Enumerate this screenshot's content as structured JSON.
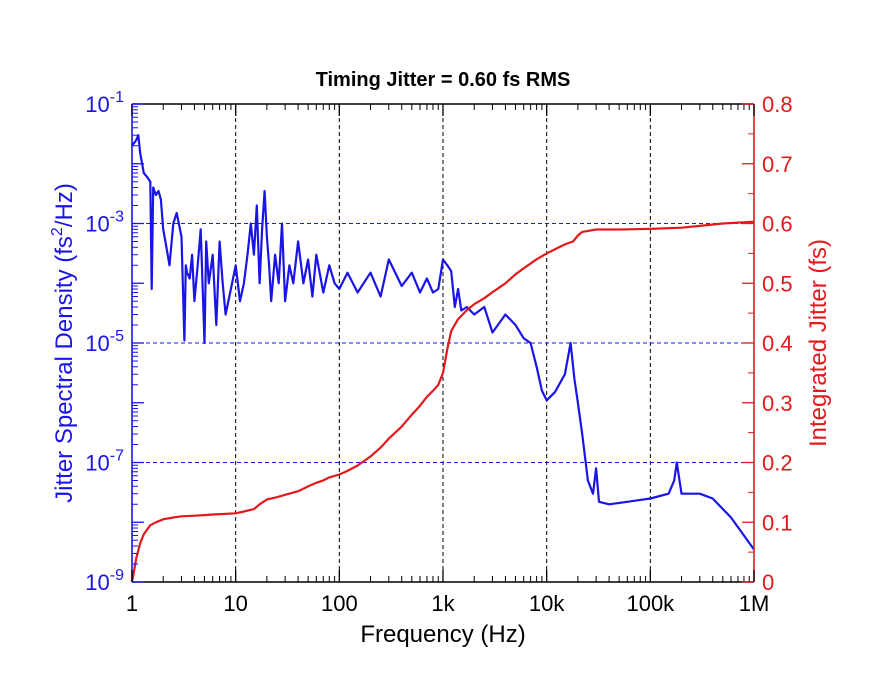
{
  "chart_data": {
    "type": "line",
    "title": "Timing Jitter =  0.60 fs RMS",
    "xlabel": "Frequency (Hz)",
    "ylabel_left": "Jitter Spectral Density (fs",
    "ylabel_left_sup": "2",
    "ylabel_left_suffix": "/Hz)",
    "ylabel_right": "Integrated Jitter (fs)",
    "x_scale": "log",
    "xlim": [
      1,
      1000000
    ],
    "x_ticks": [
      {
        "value": 1,
        "label": "1"
      },
      {
        "value": 10,
        "label": "10"
      },
      {
        "value": 100,
        "label": "100"
      },
      {
        "value": 1000,
        "label": "1k"
      },
      {
        "value": 10000,
        "label": "10k"
      },
      {
        "value": 100000,
        "label": "100k"
      },
      {
        "value": 1000000,
        "label": "1M"
      }
    ],
    "y_left_scale": "log",
    "y_left_lim": [
      1e-09,
      0.1
    ],
    "y_left_ticks": [
      {
        "value": 0.1,
        "base": "10",
        "exp": "-1"
      },
      {
        "value": 0.001,
        "base": "10",
        "exp": "-3"
      },
      {
        "value": 1e-05,
        "base": "10",
        "exp": "-5"
      },
      {
        "value": 1e-07,
        "base": "10",
        "exp": "-7"
      },
      {
        "value": 1e-09,
        "base": "10",
        "exp": "-9"
      }
    ],
    "y_right_scale": "linear",
    "y_right_lim": [
      0,
      0.8
    ],
    "y_right_ticks": [
      "0",
      "0.1",
      "0.2",
      "0.3",
      "0.4",
      "0.5",
      "0.6",
      "0.7",
      "0.8"
    ],
    "grid": {
      "x": "dashed black at decades",
      "y": "dashed blue at 1e-3, 1e-5, 1e-7"
    },
    "colors": {
      "psd": "#1a14e8",
      "integrated": "#e31a1c",
      "axis_left": "#1a14e8",
      "axis_right": "#e31a1c"
    },
    "series": [
      {
        "axis": "left",
        "x": [
          1,
          1.1,
          1.15,
          1.2,
          1.3,
          1.4,
          1.5,
          1.55,
          1.6,
          1.7,
          1.8,
          1.9,
          2,
          2.1,
          2.3,
          2.5,
          2.7,
          3,
          3.2,
          3.3,
          3.4,
          3.6,
          3.8,
          4,
          4.3,
          4.6,
          5,
          5.2,
          5.5,
          6,
          6.5,
          7,
          7.5,
          8,
          9,
          10,
          11,
          12,
          13,
          14,
          15,
          16,
          17,
          18,
          19,
          20,
          21,
          22,
          24,
          26,
          28,
          30,
          33,
          36,
          40,
          45,
          50,
          55,
          60,
          70,
          80,
          90,
          100,
          120,
          150,
          200,
          250,
          300,
          400,
          500,
          600,
          700,
          800,
          900,
          1000,
          1100,
          1200,
          1300,
          1400,
          1500,
          1700,
          2000,
          2500,
          3000,
          4000,
          5000,
          6000,
          7000,
          8000,
          9000,
          10000,
          12000,
          15000,
          17000,
          18500,
          20000,
          22000,
          25000,
          28000,
          30000,
          32000,
          40000,
          60000,
          100000,
          150000,
          170000,
          180000,
          200000,
          300000,
          400000,
          600000,
          1000000
        ],
        "y": [
          0.02,
          0.025,
          0.03,
          0.015,
          0.007,
          0.006,
          0.005,
          8e-05,
          0.004,
          0.003,
          0.0035,
          0.0025,
          0.0008,
          0.0005,
          0.0002,
          0.001,
          0.0015,
          0.0006,
          1.1e-05,
          0.0002,
          0.00015,
          0.00012,
          0.0003,
          5e-05,
          0.0002,
          0.0008,
          1e-05,
          0.0005,
          0.0001,
          0.0003,
          2e-05,
          0.0005,
          0.0001,
          3e-05,
          8e-05,
          0.0002,
          5e-05,
          0.0001,
          0.0003,
          0.001,
          0.0003,
          0.002,
          0.0001,
          0.0008,
          0.0035,
          0.0006,
          0.0002,
          5e-05,
          0.0003,
          0.0001,
          0.001,
          5e-05,
          0.0002,
          0.0001,
          0.0005,
          0.0001,
          0.00025,
          6e-05,
          0.0003,
          7e-05,
          0.0002,
          0.0001,
          8e-05,
          0.00015,
          7e-05,
          0.00015,
          6e-05,
          0.00025,
          9e-05,
          0.00015,
          7e-05,
          0.00012,
          7e-05,
          8e-05,
          0.00025,
          0.0002,
          0.00016,
          4e-05,
          8e-05,
          3.5e-05,
          4e-05,
          3e-05,
          4e-05,
          1.5e-05,
          3e-05,
          2e-05,
          1.2e-05,
          1e-05,
          4e-06,
          1.6e-06,
          1.1e-06,
          1.5e-06,
          3e-06,
          1e-05,
          2.5e-06,
          1e-06,
          3e-07,
          5e-08,
          3e-08,
          8e-08,
          2.2e-08,
          2e-08,
          2.2e-08,
          2.5e-08,
          3e-08,
          5e-08,
          1e-07,
          3e-08,
          3e-08,
          2.5e-08,
          1.2e-08,
          3.5e-09
        ]
      },
      {
        "axis": "right",
        "x": [
          1,
          1.05,
          1.1,
          1.2,
          1.3,
          1.5,
          1.7,
          2,
          2.5,
          3,
          4,
          5,
          6,
          8,
          10,
          12,
          15,
          17,
          20,
          25,
          30,
          40,
          50,
          60,
          70,
          80,
          100,
          120,
          150,
          200,
          250,
          300,
          400,
          500,
          600,
          700,
          800,
          900,
          1000,
          1050,
          1100,
          1200,
          1400,
          1700,
          2000,
          2500,
          3000,
          4000,
          5000,
          6000,
          8000,
          10000,
          15000,
          18000,
          20000,
          22000,
          30000,
          50000,
          100000,
          200000,
          300000,
          500000,
          1000000
        ],
        "y": [
          0,
          0.02,
          0.04,
          0.065,
          0.08,
          0.095,
          0.1,
          0.105,
          0.108,
          0.11,
          0.111,
          0.112,
          0.113,
          0.114,
          0.115,
          0.118,
          0.122,
          0.13,
          0.138,
          0.142,
          0.146,
          0.152,
          0.16,
          0.166,
          0.17,
          0.175,
          0.18,
          0.186,
          0.195,
          0.21,
          0.225,
          0.24,
          0.26,
          0.28,
          0.295,
          0.31,
          0.32,
          0.33,
          0.35,
          0.37,
          0.39,
          0.42,
          0.44,
          0.455,
          0.465,
          0.475,
          0.485,
          0.5,
          0.515,
          0.525,
          0.54,
          0.55,
          0.565,
          0.57,
          0.58,
          0.586,
          0.59,
          0.59,
          0.591,
          0.593,
          0.596,
          0.6,
          0.603
        ]
      }
    ]
  }
}
